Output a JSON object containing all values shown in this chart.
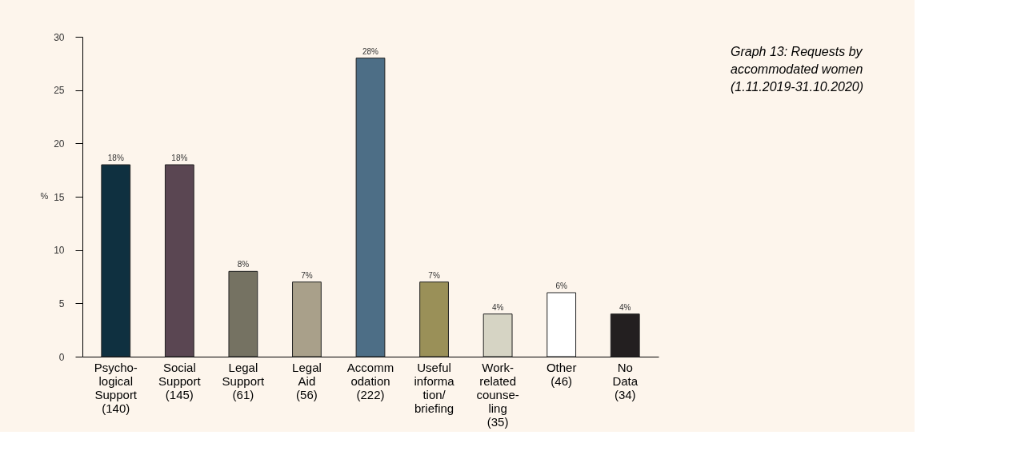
{
  "chart_data": {
    "type": "bar",
    "title": "Graph 13: Requests by accommodated women (1.11.2019-31.10.2020)",
    "ylabel": "%",
    "categories": [
      "Psycho-\nlogical\nSupport\n(140)",
      "Social\nSupport\n(145)",
      "Legal\nSupport\n(61)",
      "Legal\nAid\n(56)",
      "Accomm\nodation\n(222)",
      "Useful\ninforma\ntion/\nbriefing",
      "Work-\nrelated\ncounse-\nling\n(35)",
      "Other\n(46)",
      "No\nData\n(34)"
    ],
    "values": [
      18,
      18,
      8,
      7,
      28,
      7,
      4,
      6,
      4
    ],
    "value_labels": [
      "18%",
      "18%",
      "8%",
      "7%",
      "28%",
      "7%",
      "4%",
      "6%",
      "4%"
    ],
    "colors": [
      "#0f3040",
      "#5a4652",
      "#757262",
      "#a9a08a",
      "#4d6e86",
      "#9a9058",
      "#d6d4c4",
      "#ffffff",
      "#231f20"
    ],
    "ylim": [
      0,
      30
    ],
    "yticks": [
      0,
      5,
      10,
      15,
      20,
      25,
      30
    ],
    "grid": false
  }
}
